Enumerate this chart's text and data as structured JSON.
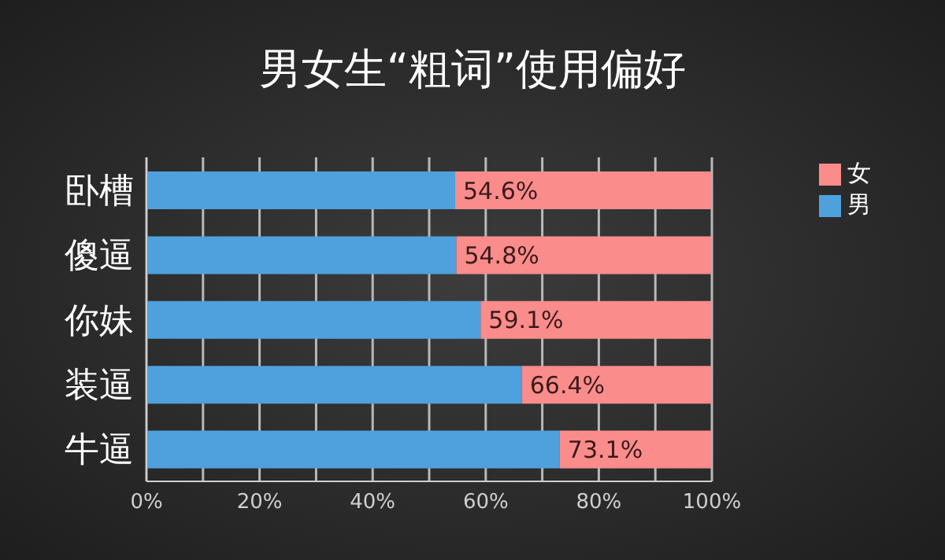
{
  "chart_data": {
    "type": "bar",
    "orientation": "horizontal",
    "stacked": true,
    "title": "男女生“粗词”使用偏好",
    "categories": [
      "卧槽",
      "傻逼",
      "你妹",
      "装逼",
      "牛逼"
    ],
    "series": [
      {
        "name": "男",
        "color": "#4ea1dc",
        "values": [
          54.6,
          54.8,
          59.1,
          66.4,
          73.1
        ],
        "value_labels": [
          "54.6%",
          "54.8%",
          "59.1%",
          "66.4%",
          "73.1%"
        ]
      },
      {
        "name": "女",
        "color": "#fb8c8c",
        "values": [
          45.4,
          45.2,
          40.9,
          33.6,
          26.9
        ]
      }
    ],
    "xlim": [
      0,
      100
    ],
    "xticks": [
      {
        "value": 0,
        "label": "0%"
      },
      {
        "value": 10,
        "label": null
      },
      {
        "value": 20,
        "label": "20%"
      },
      {
        "value": 30,
        "label": null
      },
      {
        "value": 40,
        "label": "40%"
      },
      {
        "value": 50,
        "label": null
      },
      {
        "value": 60,
        "label": "60%"
      },
      {
        "value": 70,
        "label": null
      },
      {
        "value": 80,
        "label": "80%"
      },
      {
        "value": 90,
        "label": null
      },
      {
        "value": 100,
        "label": "100%"
      }
    ],
    "grid": "x",
    "legend": "top right"
  }
}
